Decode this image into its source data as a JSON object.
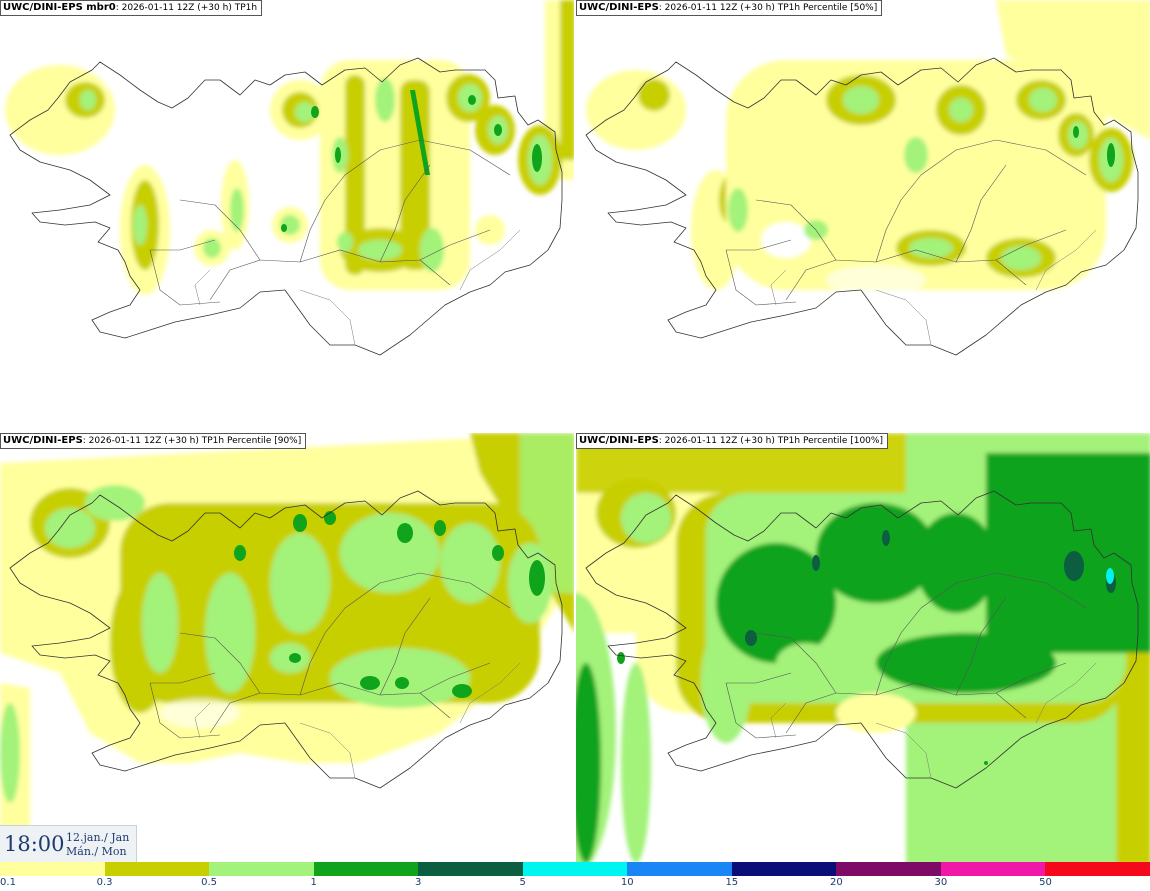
{
  "panels": [
    {
      "model": "UWC/DINI-EPS mbr0",
      "subtitle": ": 2026-01-11 12Z (+30 h) TP1h"
    },
    {
      "model": "UWC/DINI-EPS",
      "subtitle": ": 2026-01-11 12Z (+30 h) TP1h Percentile [50%]"
    },
    {
      "model": "UWC/DINI-EPS",
      "subtitle": ": 2026-01-11 12Z (+30 h) TP1h Percentile [90%]"
    },
    {
      "model": "UWC/DINI-EPS",
      "subtitle": ": 2026-01-11 12Z (+30 h) TP1h Percentile [100%]"
    }
  ],
  "timestamp": {
    "time": "18:00",
    "date_line1": "12.jan./ Jan",
    "date_line2": "Mán./ Mon"
  },
  "legend": {
    "colors": [
      "#ffff9e",
      "#c8cf00",
      "#a3f27a",
      "#10a31c",
      "#0c5e40",
      "#00f5f0",
      "#1a86f5",
      "#0a0f78",
      "#7d0a66",
      "#f018a8",
      "#f5081c"
    ],
    "ticks": [
      "0.1",
      "0.3",
      "0.5",
      "1",
      "3",
      "5",
      "10",
      "15",
      "20",
      "30",
      "50"
    ]
  },
  "colors": {
    "c1": "#ffff9e",
    "c2": "#c8cf00",
    "c3": "#a3f27a",
    "c4": "#10a31c",
    "c5": "#0c5e40",
    "c6": "#00f5f0"
  }
}
